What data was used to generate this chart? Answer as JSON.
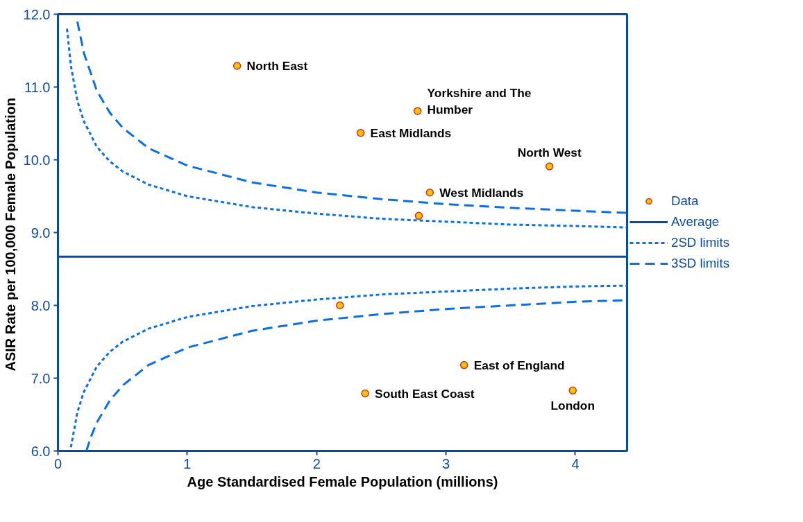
{
  "chart_data": {
    "type": "scatter",
    "xlabel": "Age Standardised Female Population (millions)",
    "ylabel": "ASIR Rate per 100,000  Female Population",
    "xlim": [
      0,
      4.4
    ],
    "ylim": [
      6,
      12
    ],
    "xticks": [
      0,
      1,
      2,
      3,
      4
    ],
    "yticks": [
      {
        "value": 6,
        "label": "6.0"
      },
      {
        "value": 7,
        "label": "7.0"
      },
      {
        "value": 8,
        "label": "8.0"
      },
      {
        "value": 9,
        "label": "9.0"
      },
      {
        "value": 10,
        "label": "10.0"
      },
      {
        "value": 11,
        "label": "11.0"
      },
      {
        "value": 12,
        "label": "12.0"
      }
    ],
    "grid": false,
    "legend": "right",
    "series": [
      {
        "name": "Data",
        "marker": "circle",
        "color": "#ffc000",
        "x": [
          1.385,
          2.78,
          2.34,
          3.8,
          2.875,
          2.79,
          2.18,
          3.14,
          2.375,
          3.98
        ],
        "values": [
          11.29,
          10.67,
          10.37,
          9.91,
          9.55,
          9.23,
          8.0,
          7.18,
          6.79,
          6.83
        ]
      },
      {
        "name": "Average",
        "type": "line",
        "line_style": "solid",
        "color": "#0d4a9a",
        "x": [
          0,
          4.4
        ],
        "values": [
          8.67,
          8.67
        ]
      },
      {
        "name": "2SD limits",
        "type": "line",
        "line_style": "dotted",
        "color": "#0a6fe6",
        "x": [
          0.07,
          0.1,
          0.15,
          0.2,
          0.3,
          0.4,
          0.5,
          0.7,
          1,
          1.5,
          2,
          2.5,
          3,
          3.5,
          4,
          4.4
        ],
        "values": [
          11.8,
          11.29,
          10.81,
          10.53,
          10.18,
          9.98,
          9.84,
          9.66,
          9.5,
          9.35,
          9.26,
          9.19,
          9.15,
          9.11,
          9.09,
          9.07
        ]
      },
      {
        "type": "line",
        "line_style": "dotted",
        "color": "#0a6fe6",
        "x": [
          0.1,
          0.15,
          0.2,
          0.3,
          0.4,
          0.5,
          0.7,
          1,
          1.5,
          2,
          2.5,
          3,
          3.5,
          4,
          4.4
        ],
        "values": [
          6.05,
          6.53,
          6.81,
          7.16,
          7.36,
          7.5,
          7.68,
          7.84,
          7.99,
          8.08,
          8.15,
          8.19,
          8.23,
          8.26,
          8.27
        ]
      },
      {
        "name": "3SD limits",
        "type": "line",
        "line_style": "dashed",
        "color": "#0a6fe6",
        "x": [
          0.15,
          0.2,
          0.3,
          0.4,
          0.5,
          0.7,
          1,
          1.5,
          2,
          2.5,
          3,
          3.5,
          4,
          4.4
        ],
        "values": [
          11.9,
          11.47,
          10.95,
          10.65,
          10.44,
          10.16,
          9.92,
          9.69,
          9.55,
          9.46,
          9.39,
          9.34,
          9.3,
          9.27
        ]
      },
      {
        "type": "line",
        "line_style": "dashed",
        "color": "#0a6fe6",
        "x": [
          0.22,
          0.25,
          0.3,
          0.4,
          0.5,
          0.7,
          1,
          1.5,
          2,
          2.5,
          3,
          3.5,
          4,
          4.4
        ],
        "values": [
          6.0,
          6.17,
          6.39,
          6.69,
          6.9,
          7.18,
          7.42,
          7.65,
          7.79,
          7.88,
          7.95,
          8.0,
          8.05,
          8.07
        ]
      }
    ],
    "annotations": [
      {
        "text": "North East",
        "x": 1.385,
        "y": 11.29
      },
      {
        "text": "Yorkshire and The\nHumber",
        "x": 2.78,
        "y": 10.67
      },
      {
        "text": "East Midlands",
        "x": 2.34,
        "y": 10.37
      },
      {
        "text": "North West",
        "x": 3.8,
        "y": 9.91
      },
      {
        "text": "West Midlands",
        "x": 2.875,
        "y": 9.55
      },
      {
        "text": "East of England",
        "x": 3.14,
        "y": 7.18
      },
      {
        "text": "South East Coast",
        "x": 2.375,
        "y": 6.79
      },
      {
        "text": "London",
        "x": 3.98,
        "y": 6.83
      }
    ]
  }
}
